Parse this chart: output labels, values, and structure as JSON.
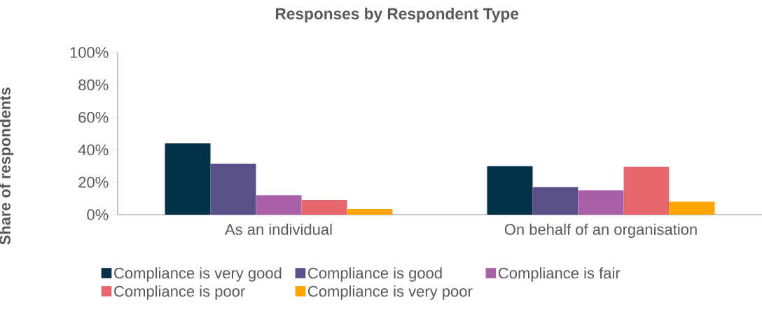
{
  "chart_data": {
    "type": "bar",
    "title": "Responses by Respondent Type",
    "ylabel": "Share of respondents",
    "categories": [
      "As an individual",
      "On behalf of an organisation"
    ],
    "series": [
      {
        "name": "Compliance is very good",
        "color": "#03324a",
        "values": [
          44,
          30
        ]
      },
      {
        "name": "Compliance is good",
        "color": "#5a5089",
        "values": [
          31.5,
          17
        ]
      },
      {
        "name": "Compliance is fair",
        "color": "#a75fa8",
        "values": [
          12,
          15
        ]
      },
      {
        "name": "Compliance is poor",
        "color": "#e8666c",
        "values": [
          9,
          29.5
        ]
      },
      {
        "name": "Compliance is very poor",
        "color": "#ffa500",
        "values": [
          3.5,
          8
        ]
      }
    ],
    "ylim": [
      0,
      100
    ],
    "yticks": [
      {
        "value": 0,
        "label": "0%"
      },
      {
        "value": 20,
        "label": "20%"
      },
      {
        "value": 40,
        "label": "40%"
      },
      {
        "value": 60,
        "label": "60%"
      },
      {
        "value": 80,
        "label": "80%"
      },
      {
        "value": 100,
        "label": "100%"
      }
    ],
    "grid": false,
    "legend": "bottom"
  }
}
